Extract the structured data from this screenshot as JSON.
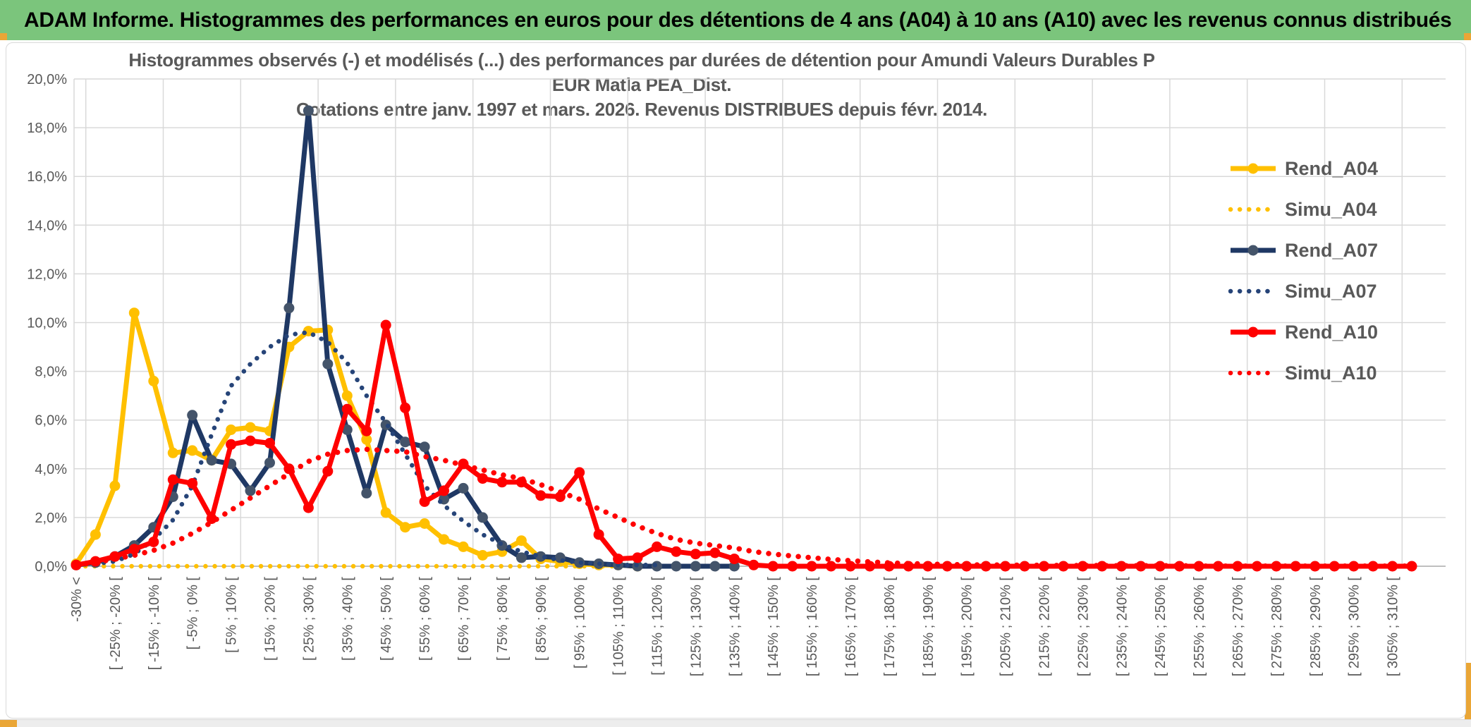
{
  "header": {
    "title": "ADAM Informe. Histogrammes des performances en euros pour des détentions de 4 ans (A04) à 10 ans (A10) avec les revenus connus distribués",
    "bg_color": "#7BC57C",
    "accent_gold": "#EAA636"
  },
  "chart": {
    "title_line1": "Histogrammes observés (-) et modélisés (...) des performances par durées de détention pour Amundi Valeurs Durables P EUR Matla PEA_Dist.",
    "title_line2": "Cotations entre janv. 1997 et mars. 2026. Revenus DISTRIBUES depuis févr. 2014."
  },
  "chart_data": {
    "type": "line",
    "title": "Histogrammes observés (-) et modélisés (...) des performances par durées de détention pour Amundi Valeurs Durables P EUR Matla PEA_Dist. Cotations entre janv. 1997 et mars. 2026. Revenus DISTRIBUES depuis févr. 2014.",
    "bins": 70,
    "bin_width_pct": 5,
    "x_label_every_n_bins": 2,
    "x_tick_labels": [
      "-30% <",
      "[ -25% ; -20% [",
      "[ -15% ; -10% [",
      "[ -5% ; 0% [",
      "[ 5% ; 10% [",
      "[ 15% ; 20% [",
      "[ 25% ; 30% [",
      "[ 35% ; 40% [",
      "[ 45% ; 50% [",
      "[ 55% ; 60% [",
      "[ 65% ; 70% [",
      "[ 75% ; 80% [",
      "[ 85% ; 90% [",
      "[ 95% ; 100% [",
      "[ 105% ; 110% [",
      "[ 115% ; 120% [",
      "[ 125% ; 130% [",
      "[ 135% ; 140% [",
      "[ 145% ; 150% [",
      "[ 155% ; 160% [",
      "[ 165% ; 170% [",
      "[ 175% ; 180% [",
      "[ 185% ; 190% [",
      "[ 195% ; 200% [",
      "[ 205% ; 210% [",
      "[ 215% ; 220% [",
      "[ 225% ; 230% [",
      "[ 235% ; 240% [",
      "[ 245% ; 250% [",
      "[ 255% ; 260% [",
      "[ 265% ; 270% [",
      "[ 275% ; 280% [",
      "[ 285% ; 290% [",
      "[ 295% ; 300% [",
      "[ 305% ; 310% ["
    ],
    "y_axis": {
      "min": 0,
      "max": 20,
      "step": 2,
      "tick_labels": [
        "0,0%",
        "2,0%",
        "4,0%",
        "6,0%",
        "8,0%",
        "10,0%",
        "12,0%",
        "14,0%",
        "16,0%",
        "18,0%",
        "20,0%"
      ]
    },
    "grid_color": "#D9D9D9",
    "axis_color": "#BFBFBF",
    "text_color": "#595959",
    "legend_position": "inside-right",
    "series": [
      {
        "name": "Rend_A04",
        "style": "solid",
        "color": "#FFC000",
        "marker_color": "#FFC000",
        "values": [
          0.1,
          1.3,
          3.3,
          10.4,
          7.6,
          4.65,
          4.75,
          4.35,
          5.6,
          5.7,
          5.55,
          9.0,
          9.65,
          9.7,
          7.0,
          5.2,
          2.2,
          1.6,
          1.75,
          1.1,
          0.8,
          0.45,
          0.6,
          1.05,
          0.3,
          0.2,
          0.1,
          0.05,
          0.05,
          0
        ]
      },
      {
        "name": "Simu_A04",
        "style": "dotted",
        "color": "#FFC000",
        "values": [
          0,
          0,
          0,
          0,
          0,
          0,
          0,
          0,
          0,
          0,
          0,
          0,
          0,
          0,
          0,
          0,
          0,
          0,
          0,
          0,
          0,
          0,
          0,
          0,
          0,
          0,
          0,
          0,
          0,
          0,
          0,
          0,
          0,
          0,
          0
        ]
      },
      {
        "name": "Rend_A07",
        "style": "solid",
        "color": "#1F3864",
        "marker_color": "#44546A",
        "values": [
          0.05,
          0.15,
          0.4,
          0.85,
          1.6,
          2.85,
          6.2,
          4.35,
          4.2,
          3.1,
          4.25,
          10.6,
          18.7,
          8.3,
          5.6,
          3.0,
          5.8,
          5.1,
          4.9,
          2.75,
          3.2,
          2.0,
          0.85,
          0.35,
          0.4,
          0.35,
          0.15,
          0.1,
          0.05,
          0,
          0,
          0,
          0,
          0,
          0
        ]
      },
      {
        "name": "Simu_A07",
        "style": "dotted",
        "color": "#264478",
        "values": [
          0.05,
          0.1,
          0.2,
          0.5,
          1.1,
          1.9,
          3.3,
          5.4,
          7.4,
          8.3,
          9.0,
          9.5,
          9.6,
          9.2,
          8.35,
          7.0,
          5.9,
          4.6,
          3.3,
          2.5,
          1.85,
          1.3,
          0.9,
          0.6,
          0.4,
          0.25,
          0.15,
          0.1,
          0.05,
          0.05,
          0.05
        ]
      },
      {
        "name": "Rend_A10",
        "style": "solid",
        "color": "#FF0000",
        "marker_color": "#FF0000",
        "values": [
          0.05,
          0.2,
          0.4,
          0.7,
          1.0,
          3.55,
          3.4,
          1.95,
          5.0,
          5.15,
          5.05,
          4.0,
          2.4,
          3.9,
          6.45,
          5.55,
          9.9,
          6.5,
          2.65,
          3.1,
          4.2,
          3.6,
          3.45,
          3.45,
          2.9,
          2.85,
          3.85,
          1.3,
          0.3,
          0.35,
          0.8,
          0.6,
          0.5,
          0.55,
          0.3,
          0.05,
          0,
          0,
          0,
          0,
          0,
          0,
          0,
          0,
          0,
          0,
          0,
          0,
          0,
          0,
          0,
          0,
          0,
          0,
          0,
          0,
          0,
          0,
          0,
          0,
          0,
          0,
          0,
          0,
          0,
          0,
          0,
          0,
          0,
          0
        ]
      },
      {
        "name": "Simu_A10",
        "style": "dotted",
        "color": "#FF0000",
        "values": [
          0.05,
          0.15,
          0.3,
          0.45,
          0.65,
          0.95,
          1.35,
          1.8,
          2.3,
          2.8,
          3.3,
          3.8,
          4.3,
          4.6,
          4.75,
          4.8,
          4.75,
          4.7,
          4.5,
          4.35,
          4.15,
          3.95,
          3.75,
          3.6,
          3.35,
          3.05,
          2.75,
          2.35,
          2.0,
          1.65,
          1.35,
          1.1,
          0.95,
          0.85,
          0.75,
          0.6,
          0.5,
          0.42,
          0.35,
          0.28,
          0.23,
          0.18,
          0.14,
          0.11,
          0.09,
          0.07,
          0.06,
          0.05,
          0.05,
          0.04,
          0.04,
          0.03,
          0.03,
          0.03,
          0.02,
          0.02,
          0.02,
          0.02,
          0.01,
          0.01,
          0.01,
          0.01,
          0.01,
          0.01,
          0.01,
          0.01,
          0.01,
          0.01,
          0.01,
          0.01
        ]
      }
    ],
    "legend": {
      "entries": [
        "Rend_A04",
        "Simu_A04",
        "Rend_A07",
        "Simu_A07",
        "Rend_A10",
        "Simu_A10"
      ]
    }
  }
}
